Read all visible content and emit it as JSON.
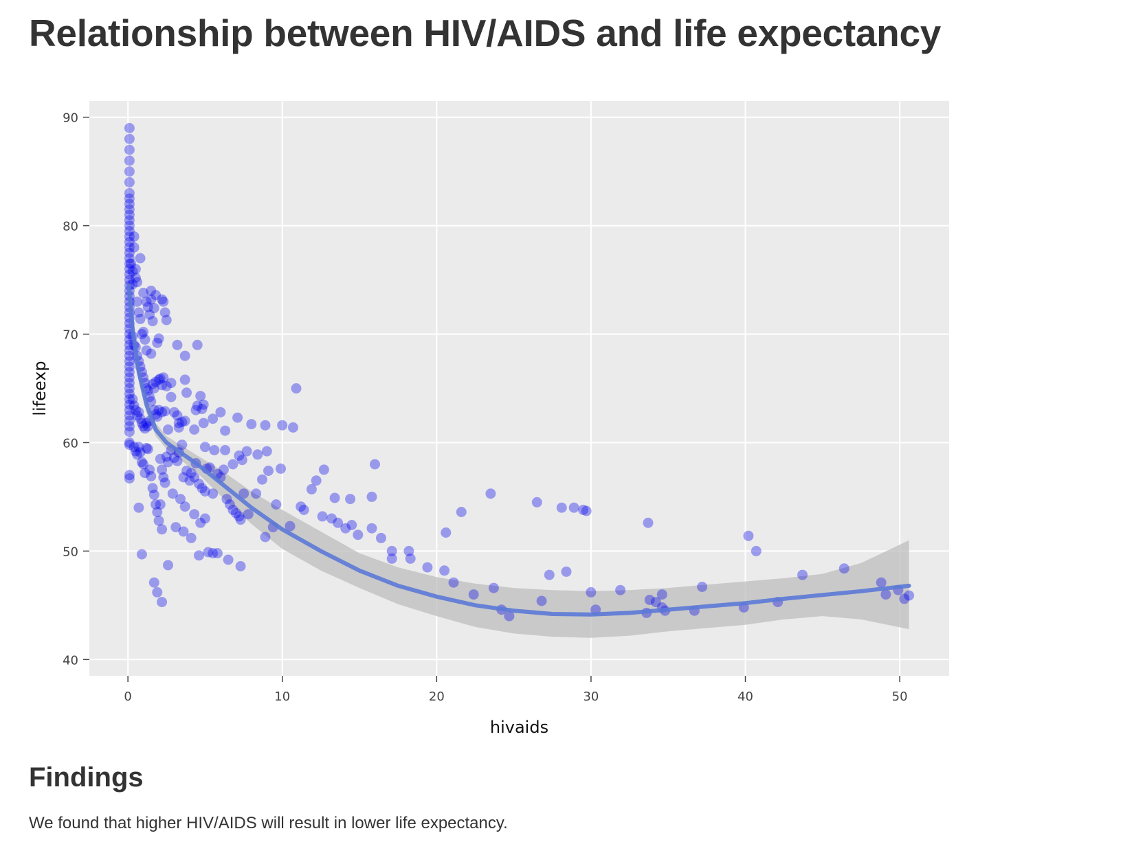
{
  "page": {
    "title": "Relationship between HIV/AIDS and life expectancy",
    "findings_heading": "Findings",
    "findings_text": "We found that higher HIV/AIDS will result in lower life expectancy."
  },
  "chart_data": {
    "type": "scatter",
    "title": "",
    "xlabel": "hivaids",
    "ylabel": "lifeexp",
    "xlim": [
      -2.5,
      53.2
    ],
    "ylim": [
      38.5,
      91.5
    ],
    "xticks": [
      0,
      10,
      20,
      30,
      40,
      50
    ],
    "yticks": [
      40,
      50,
      60,
      70,
      80,
      90
    ],
    "grid": true,
    "colors": {
      "panel_background": "#ebebeb",
      "grid": "#ffffff",
      "point": "#0000ee",
      "trend_line": "#5b79d6",
      "confidence_band": "#bdbdbd"
    },
    "points_x0_1": [
      [
        0.1,
        89
      ],
      [
        0.1,
        88
      ],
      [
        0.1,
        87
      ],
      [
        0.1,
        86
      ],
      [
        0.1,
        85
      ],
      [
        0.1,
        84
      ],
      [
        0.1,
        83
      ],
      [
        0.1,
        82.5
      ],
      [
        0.1,
        82
      ],
      [
        0.1,
        81.5
      ],
      [
        0.1,
        81
      ],
      [
        0.1,
        80.5
      ],
      [
        0.1,
        80
      ],
      [
        0.1,
        79.5
      ],
      [
        0.1,
        79
      ],
      [
        0.1,
        78.5
      ],
      [
        0.1,
        78
      ],
      [
        0.1,
        77.5
      ],
      [
        0.1,
        77
      ],
      [
        0.1,
        76.5
      ],
      [
        0.1,
        76
      ],
      [
        0.1,
        75.5
      ],
      [
        0.1,
        75
      ],
      [
        0.1,
        74.5
      ],
      [
        0.1,
        74
      ],
      [
        0.1,
        73.5
      ],
      [
        0.1,
        73
      ],
      [
        0.1,
        72.5
      ],
      [
        0.1,
        72
      ],
      [
        0.1,
        71.5
      ],
      [
        0.1,
        71
      ],
      [
        0.1,
        70.5
      ],
      [
        0.1,
        70
      ],
      [
        0.1,
        69.5
      ],
      [
        0.1,
        69
      ],
      [
        0.1,
        68.5
      ],
      [
        0.1,
        68
      ],
      [
        0.1,
        67.5
      ],
      [
        0.1,
        67
      ],
      [
        0.1,
        66.5
      ],
      [
        0.1,
        66
      ],
      [
        0.1,
        65.5
      ],
      [
        0.1,
        65
      ],
      [
        0.1,
        64.5
      ],
      [
        0.1,
        64
      ],
      [
        0.1,
        63.5
      ],
      [
        0.1,
        63
      ],
      [
        0.1,
        62.5
      ],
      [
        0.1,
        62
      ],
      [
        0.1,
        61.5
      ],
      [
        0.1,
        61
      ],
      [
        0.1,
        60
      ],
      [
        0.1,
        59.8
      ],
      [
        0.1,
        57
      ],
      [
        0.1,
        56.7
      ]
    ],
    "points": [
      [
        0.2,
        76.5
      ],
      [
        0.3,
        75.8
      ],
      [
        0.3,
        74.6
      ],
      [
        0.4,
        79
      ],
      [
        0.4,
        78
      ],
      [
        0.5,
        76
      ],
      [
        0.5,
        75.2
      ],
      [
        0.6,
        74.8
      ],
      [
        0.6,
        73
      ],
      [
        0.7,
        72
      ],
      [
        0.8,
        77
      ],
      [
        0.8,
        71.4
      ],
      [
        0.9,
        70
      ],
      [
        1,
        73.8
      ],
      [
        1,
        70.2
      ],
      [
        1.1,
        69.5
      ],
      [
        1.2,
        73
      ],
      [
        1.2,
        68.5
      ],
      [
        1.3,
        72.5
      ],
      [
        1.4,
        71.8
      ],
      [
        1.5,
        74
      ],
      [
        1.5,
        73.2
      ],
      [
        1.6,
        71.2
      ],
      [
        1.7,
        72.4
      ],
      [
        1.8,
        73.6
      ],
      [
        1.9,
        69.2
      ],
      [
        2,
        69.6
      ],
      [
        2.2,
        73.2
      ],
      [
        2.3,
        73
      ],
      [
        2.4,
        72
      ],
      [
        2.5,
        71.3
      ],
      [
        0.3,
        69.8
      ],
      [
        0.4,
        69
      ],
      [
        0.5,
        68.8
      ],
      [
        0.6,
        68
      ],
      [
        0.7,
        67.5
      ],
      [
        0.8,
        67
      ],
      [
        0.9,
        66.5
      ],
      [
        1,
        66
      ],
      [
        1.1,
        65.5
      ],
      [
        1.2,
        65
      ],
      [
        1.3,
        64.8
      ],
      [
        1.4,
        64.2
      ],
      [
        1.5,
        68.2
      ],
      [
        1.6,
        65.4
      ],
      [
        1.7,
        65
      ],
      [
        1.8,
        65.6
      ],
      [
        2,
        65.8
      ],
      [
        2.1,
        65.9
      ],
      [
        2.2,
        65.3
      ],
      [
        2.3,
        66
      ],
      [
        2.5,
        65.2
      ],
      [
        2.8,
        65.5
      ],
      [
        0.3,
        64
      ],
      [
        0.4,
        63.4
      ],
      [
        0.5,
        63
      ],
      [
        0.6,
        62.5
      ],
      [
        0.7,
        62.8
      ],
      [
        0.8,
        62.2
      ],
      [
        0.9,
        61.8
      ],
      [
        1,
        61.5
      ],
      [
        1.1,
        61.3
      ],
      [
        1.2,
        61.8
      ],
      [
        1.3,
        61.5
      ],
      [
        1.4,
        62
      ],
      [
        1.5,
        63.8
      ],
      [
        1.7,
        63
      ],
      [
        1.8,
        62.6
      ],
      [
        1.9,
        62.4
      ],
      [
        2,
        63
      ],
      [
        2.2,
        62.8
      ],
      [
        2.4,
        62.9
      ],
      [
        2.6,
        61.2
      ],
      [
        2.8,
        64.2
      ],
      [
        3,
        62.8
      ],
      [
        3.2,
        62.5
      ],
      [
        3.3,
        61.8
      ],
      [
        3.5,
        61.9
      ],
      [
        3.7,
        62
      ],
      [
        0.4,
        59.6
      ],
      [
        0.5,
        59.2
      ],
      [
        0.6,
        58.9
      ],
      [
        0.7,
        59.6
      ],
      [
        0.8,
        59.1
      ],
      [
        0.9,
        58.2
      ],
      [
        1,
        58
      ],
      [
        1.1,
        57.2
      ],
      [
        1.2,
        59.5
      ],
      [
        1.3,
        59.4
      ],
      [
        1.4,
        57.5
      ],
      [
        1.5,
        56.9
      ],
      [
        1.6,
        55.8
      ],
      [
        1.7,
        55.2
      ],
      [
        1.8,
        54.3
      ],
      [
        1.9,
        53.6
      ],
      [
        2,
        52.8
      ],
      [
        2.1,
        58.5
      ],
      [
        2.2,
        57.5
      ],
      [
        2.3,
        56.8
      ],
      [
        2.4,
        56.3
      ],
      [
        2.5,
        58.7
      ],
      [
        2.6,
        58.2
      ],
      [
        2.8,
        59.3
      ],
      [
        2.9,
        55.3
      ],
      [
        3,
        58.6
      ],
      [
        3.2,
        58.3
      ],
      [
        3.3,
        59.1
      ],
      [
        3.5,
        59.8
      ],
      [
        3.6,
        56.8
      ],
      [
        3.8,
        57.4
      ],
      [
        4,
        56.5
      ],
      [
        4.1,
        57.2
      ],
      [
        4.3,
        56.8
      ],
      [
        4.4,
        58.1
      ],
      [
        4.6,
        56.2
      ],
      [
        4.8,
        55.8
      ],
      [
        5,
        55.5
      ],
      [
        5.1,
        57.6
      ],
      [
        5.3,
        57.7
      ],
      [
        5.5,
        55.3
      ],
      [
        5.8,
        57.1
      ],
      [
        6,
        56.8
      ],
      [
        6.2,
        57.5
      ],
      [
        6.4,
        54.8
      ],
      [
        6.6,
        54.3
      ],
      [
        6.8,
        53.8
      ],
      [
        7,
        53.5
      ],
      [
        7.2,
        53.2
      ],
      [
        7.3,
        52.9
      ],
      [
        7.5,
        55.3
      ],
      [
        0.7,
        54
      ],
      [
        0.9,
        49.7
      ],
      [
        1.7,
        47.1
      ],
      [
        1.9,
        46.2
      ],
      [
        2.2,
        45.3
      ],
      [
        2.6,
        48.7
      ],
      [
        3.1,
        52.2
      ],
      [
        3.6,
        51.8
      ],
      [
        4.1,
        51.2
      ],
      [
        4.6,
        49.6
      ],
      [
        4.7,
        52.6
      ],
      [
        5,
        53
      ],
      [
        5.2,
        49.9
      ],
      [
        5.5,
        49.8
      ],
      [
        5.8,
        49.8
      ],
      [
        6.5,
        49.2
      ],
      [
        7.3,
        48.6
      ],
      [
        2.1,
        54.3
      ],
      [
        2.2,
        52
      ],
      [
        3.4,
        54.8
      ],
      [
        3.7,
        54.1
      ],
      [
        4.3,
        53.4
      ],
      [
        3.2,
        69
      ],
      [
        3.7,
        68
      ],
      [
        3.7,
        65.8
      ],
      [
        3.8,
        64.6
      ],
      [
        4.4,
        63
      ],
      [
        4.5,
        63.4
      ],
      [
        4.5,
        69
      ],
      [
        4.7,
        64.3
      ],
      [
        4.8,
        63.1
      ],
      [
        4.9,
        63.5
      ],
      [
        3.3,
        61.4
      ],
      [
        4.3,
        61.2
      ],
      [
        4.9,
        61.8
      ],
      [
        5,
        59.6
      ],
      [
        5.5,
        62.2
      ],
      [
        5.6,
        59.3
      ],
      [
        6,
        62.8
      ],
      [
        6.3,
        61.1
      ],
      [
        6.3,
        59.3
      ],
      [
        7.1,
        62.3
      ],
      [
        6.8,
        58
      ],
      [
        7.2,
        58.8
      ],
      [
        7.4,
        58.4
      ],
      [
        7.7,
        59.2
      ],
      [
        8,
        61.7
      ],
      [
        8.4,
        58.9
      ],
      [
        8.9,
        61.6
      ],
      [
        9,
        59.2
      ],
      [
        10,
        61.6
      ],
      [
        10.7,
        61.4
      ],
      [
        10.9,
        65
      ],
      [
        7.8,
        53.4
      ],
      [
        8.3,
        55.3
      ],
      [
        8.7,
        56.6
      ],
      [
        8.9,
        51.3
      ],
      [
        9.1,
        57.4
      ],
      [
        9.4,
        52.2
      ],
      [
        9.6,
        54.3
      ],
      [
        9.9,
        57.6
      ],
      [
        10.5,
        52.3
      ],
      [
        11.2,
        54.1
      ],
      [
        11.4,
        53.8
      ],
      [
        11.9,
        55.7
      ],
      [
        12.2,
        56.5
      ],
      [
        12.6,
        53.2
      ],
      [
        12.7,
        57.5
      ],
      [
        13.2,
        53
      ],
      [
        13.4,
        54.9
      ],
      [
        13.6,
        52.6
      ],
      [
        14.1,
        52.1
      ],
      [
        14.4,
        54.8
      ],
      [
        14.5,
        52.4
      ],
      [
        14.9,
        51.5
      ],
      [
        15.8,
        55
      ],
      [
        15.8,
        52.1
      ],
      [
        16,
        58
      ],
      [
        16.4,
        51.2
      ],
      [
        17.1,
        50
      ],
      [
        17.1,
        49.3
      ],
      [
        18.2,
        50
      ],
      [
        18.3,
        49.3
      ],
      [
        19.4,
        48.5
      ],
      [
        20.5,
        48.2
      ],
      [
        20.6,
        51.7
      ],
      [
        21.1,
        47.1
      ],
      [
        21.6,
        53.6
      ],
      [
        22.4,
        46
      ],
      [
        23.5,
        55.3
      ],
      [
        23.7,
        46.6
      ],
      [
        24.2,
        44.6
      ],
      [
        24.7,
        44
      ],
      [
        26.5,
        54.5
      ],
      [
        26.8,
        45.4
      ],
      [
        27.3,
        47.8
      ],
      [
        28.1,
        54
      ],
      [
        28.4,
        48.1
      ],
      [
        28.9,
        54
      ],
      [
        29.5,
        53.8
      ],
      [
        29.7,
        53.7
      ],
      [
        30,
        46.2
      ],
      [
        30.3,
        44.6
      ],
      [
        31.9,
        46.4
      ],
      [
        33.6,
        44.3
      ],
      [
        33.7,
        52.6
      ],
      [
        33.8,
        45.5
      ],
      [
        34.2,
        45.3
      ],
      [
        34.6,
        44.8
      ],
      [
        34.6,
        46
      ],
      [
        34.8,
        44.5
      ],
      [
        36.7,
        44.5
      ],
      [
        37.2,
        46.7
      ],
      [
        39.9,
        44.8
      ],
      [
        40.2,
        51.4
      ],
      [
        40.7,
        50
      ],
      [
        42.1,
        45.3
      ],
      [
        43.7,
        47.8
      ],
      [
        46.4,
        48.4
      ],
      [
        48.8,
        47.1
      ],
      [
        49.1,
        46
      ],
      [
        49.9,
        46.4
      ],
      [
        50.3,
        45.6
      ],
      [
        50.6,
        45.9
      ]
    ],
    "trend_line": [
      [
        0.05,
        74.5
      ],
      [
        0.3,
        70.5
      ],
      [
        0.7,
        66.5
      ],
      [
        1.2,
        63.5
      ],
      [
        1.8,
        61.2
      ],
      [
        2.5,
        60
      ],
      [
        3.5,
        59
      ],
      [
        4.5,
        58
      ],
      [
        6,
        56.3
      ],
      [
        8,
        54
      ],
      [
        10,
        52
      ],
      [
        12.5,
        50
      ],
      [
        15,
        48.2
      ],
      [
        17.5,
        46.8
      ],
      [
        20,
        45.8
      ],
      [
        22.5,
        45
      ],
      [
        25,
        44.5
      ],
      [
        27.5,
        44.2
      ],
      [
        30,
        44.15
      ],
      [
        32.5,
        44.3
      ],
      [
        35,
        44.6
      ],
      [
        37.5,
        44.9
      ],
      [
        40,
        45.2
      ],
      [
        42.5,
        45.6
      ],
      [
        45,
        45.95
      ],
      [
        47.5,
        46.3
      ],
      [
        50.6,
        46.8
      ]
    ],
    "confidence_upper": [
      [
        0.05,
        75.7
      ],
      [
        0.3,
        71.5
      ],
      [
        0.7,
        67.3
      ],
      [
        1.2,
        64.2
      ],
      [
        1.8,
        61.8
      ],
      [
        2.5,
        60.6
      ],
      [
        3.5,
        59.7
      ],
      [
        4.5,
        58.8
      ],
      [
        6,
        57.5
      ],
      [
        8,
        55.5
      ],
      [
        10,
        53.8
      ],
      [
        12.5,
        51.8
      ],
      [
        15,
        49.8
      ],
      [
        17.5,
        48.5
      ],
      [
        20,
        47.6
      ],
      [
        22.5,
        47
      ],
      [
        25,
        46.6
      ],
      [
        27.5,
        46.4
      ],
      [
        30,
        46.3
      ],
      [
        32.5,
        46.4
      ],
      [
        35,
        46.6
      ],
      [
        37.5,
        46.9
      ],
      [
        40,
        47.2
      ],
      [
        42.5,
        47.5
      ],
      [
        45,
        47.9
      ],
      [
        47.5,
        48.9
      ],
      [
        50.6,
        51
      ]
    ],
    "confidence_lower": [
      [
        0.05,
        73.3
      ],
      [
        0.3,
        69.5
      ],
      [
        0.7,
        65.7
      ],
      [
        1.2,
        62.8
      ],
      [
        1.8,
        60.6
      ],
      [
        2.5,
        59.4
      ],
      [
        3.5,
        58.3
      ],
      [
        4.5,
        57.2
      ],
      [
        6,
        55.1
      ],
      [
        8,
        52.5
      ],
      [
        10,
        50.2
      ],
      [
        12.5,
        48.2
      ],
      [
        15,
        46.6
      ],
      [
        17.5,
        45.1
      ],
      [
        20,
        44
      ],
      [
        22.5,
        43
      ],
      [
        25,
        42.4
      ],
      [
        27.5,
        42.1
      ],
      [
        30,
        42
      ],
      [
        32.5,
        42.2
      ],
      [
        35,
        42.6
      ],
      [
        37.5,
        42.9
      ],
      [
        40,
        43.2
      ],
      [
        42.5,
        43.7
      ],
      [
        45,
        44
      ],
      [
        47.5,
        43.7
      ],
      [
        50.6,
        42.8
      ]
    ]
  }
}
